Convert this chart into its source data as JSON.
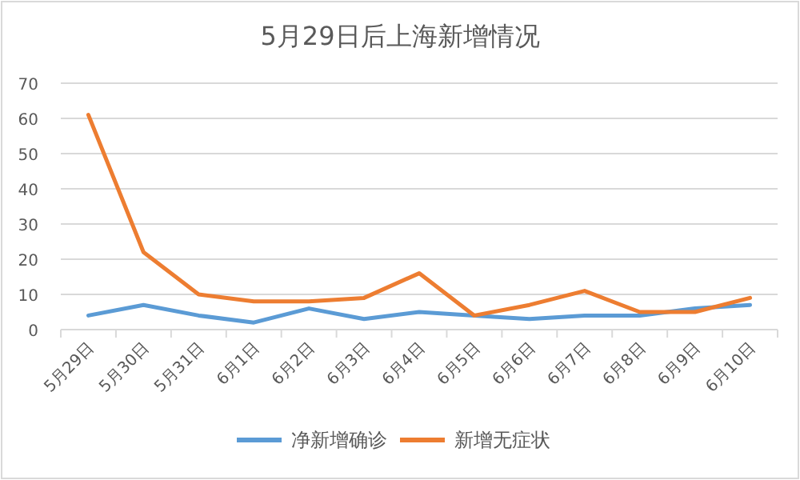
{
  "chart_data": {
    "type": "line",
    "title": "5月29日后上海新增情况",
    "categories": [
      "5月29日",
      "5月30日",
      "5月31日",
      "6月1日",
      "6月2日",
      "6月3日",
      "6月4日",
      "6月5日",
      "6月6日",
      "6月7日",
      "6月8日",
      "6月9日",
      "6月10日"
    ],
    "series": [
      {
        "name": "净新增确诊",
        "color": "#5b9bd5",
        "values": [
          4,
          7,
          4,
          2,
          6,
          3,
          5,
          4,
          3,
          4,
          4,
          6,
          7
        ]
      },
      {
        "name": "新增无症状",
        "color": "#ed7d31",
        "values": [
          61,
          22,
          10,
          8,
          8,
          9,
          16,
          4,
          7,
          11,
          5,
          5,
          9
        ]
      }
    ],
    "ylim": [
      0,
      70
    ],
    "yticks": [
      0,
      10,
      20,
      30,
      40,
      50,
      60,
      70
    ],
    "grid": "y",
    "legend": "bottom",
    "marker": "none",
    "line_style": "solid"
  }
}
